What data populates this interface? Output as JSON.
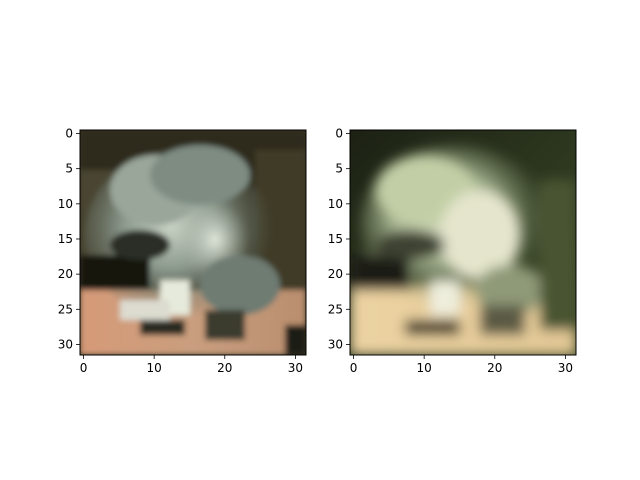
{
  "chart_data": [
    {
      "type": "heatmap",
      "title": "",
      "xlabel": "",
      "ylabel": "",
      "xlim": [
        -0.5,
        31.5
      ],
      "ylim": [
        31.5,
        -0.5
      ],
      "xticks": [
        0,
        10,
        20,
        30
      ],
      "yticks": [
        0,
        5,
        10,
        15,
        20,
        25,
        30
      ],
      "grid": false,
      "image_size": [
        32,
        32
      ],
      "description_colors": {
        "background_top": "#3a3422",
        "subject_gray": "#8a968a",
        "subject_light": "#c9d2c4",
        "shadow_dark": "#161612",
        "floor_skin": "#d6a07c"
      }
    },
    {
      "type": "heatmap",
      "title": "",
      "xlabel": "",
      "ylabel": "",
      "xlim": [
        -0.5,
        31.5
      ],
      "ylim": [
        31.5,
        -0.5
      ],
      "xticks": [
        0,
        10,
        20,
        30
      ],
      "yticks": [
        0,
        5,
        10,
        15,
        20,
        25,
        30
      ],
      "grid": false,
      "image_size": [
        32,
        32
      ],
      "description_colors": {
        "background_top": "#1f2416",
        "background_right": "#3e4a2a",
        "subject_light": "#c4d0a8",
        "subject_pale": "#dfe2c6",
        "shadow_dark": "#1a1a12",
        "floor_sand": "#e8cf9e"
      }
    }
  ]
}
